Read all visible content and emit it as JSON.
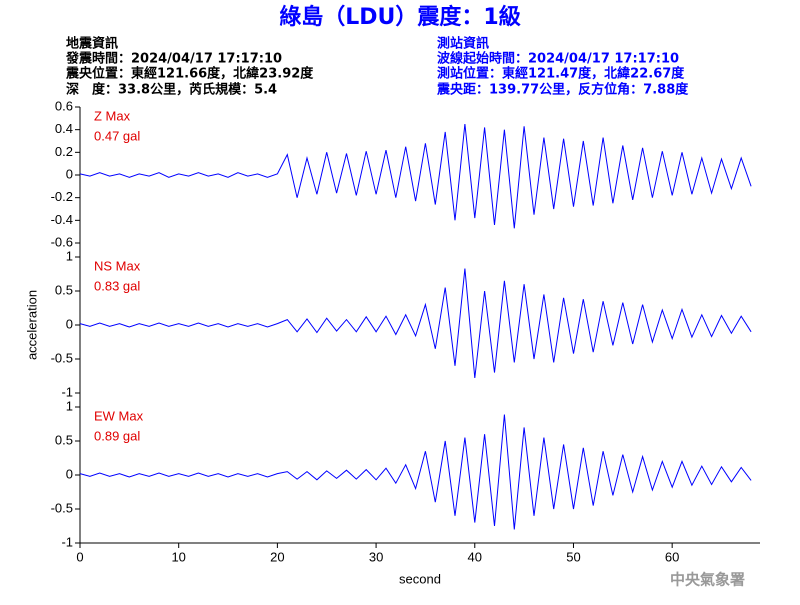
{
  "header": {
    "title": "綠島（LDU）震度：1級",
    "left": [
      "地震資訊",
      "發震時間：2024/04/17 17:17:10",
      "震央位置：東經121.66度，北緯23.92度",
      "深　度：33.8公里，芮氏規模：5.4"
    ],
    "right": [
      "測站資訊",
      "波線起始時間：2024/04/17 17:17:10",
      "測站位置：東經121.47度，北緯22.67度",
      "震央距：139.77公里，反方位角：7.88度"
    ],
    "footer": "中央氣象署"
  },
  "chart_data": [
    {
      "type": "line",
      "label": "Z Max",
      "max_label": "0.47 gal",
      "color": "#0000ff",
      "x": [
        0,
        1,
        2,
        3,
        4,
        5,
        6,
        7,
        8,
        9,
        10,
        11,
        12,
        13,
        14,
        15,
        16,
        17,
        18,
        19,
        20,
        21,
        22,
        23,
        24,
        25,
        26,
        27,
        28,
        29,
        30,
        31,
        32,
        33,
        34,
        35,
        36,
        37,
        38,
        39,
        40,
        41,
        42,
        43,
        44,
        45,
        46,
        47,
        48,
        49,
        50,
        51,
        52,
        53,
        54,
        55,
        56,
        57,
        58,
        59,
        60,
        61,
        62,
        63,
        64,
        65,
        66,
        67,
        68
      ],
      "values": [
        0.01,
        -0.01,
        0.02,
        -0.01,
        0.01,
        -0.02,
        0.01,
        -0.01,
        0.02,
        -0.02,
        0.01,
        -0.01,
        0.02,
        -0.01,
        0.01,
        -0.02,
        0.02,
        -0.01,
        0.01,
        -0.02,
        0.01,
        0.18,
        -0.2,
        0.15,
        -0.17,
        0.2,
        -0.16,
        0.19,
        -0.18,
        0.21,
        -0.17,
        0.22,
        -0.2,
        0.25,
        -0.23,
        0.28,
        -0.26,
        0.38,
        -0.4,
        0.45,
        -0.38,
        0.42,
        -0.44,
        0.4,
        -0.47,
        0.43,
        -0.35,
        0.33,
        -0.3,
        0.32,
        -0.28,
        0.3,
        -0.27,
        0.33,
        -0.25,
        0.26,
        -0.22,
        0.24,
        -0.2,
        0.21,
        -0.18,
        0.2,
        -0.17,
        0.15,
        -0.16,
        0.14,
        -0.12,
        0.15,
        -0.1
      ],
      "xlim": [
        0,
        68.9
      ],
      "ylim": [
        -0.6,
        0.6
      ],
      "yticks": [
        0.6,
        0.4,
        0.2,
        0,
        -0.2,
        -0.4,
        -0.6
      ]
    },
    {
      "type": "line",
      "label": "NS Max",
      "max_label": "0.83 gal",
      "color": "#0000ff",
      "ylabel": "acceleration",
      "x": [
        0,
        1,
        2,
        3,
        4,
        5,
        6,
        7,
        8,
        9,
        10,
        11,
        12,
        13,
        14,
        15,
        16,
        17,
        18,
        19,
        20,
        21,
        22,
        23,
        24,
        25,
        26,
        27,
        28,
        29,
        30,
        31,
        32,
        33,
        34,
        35,
        36,
        37,
        38,
        39,
        40,
        41,
        42,
        43,
        44,
        45,
        46,
        47,
        48,
        49,
        50,
        51,
        52,
        53,
        54,
        55,
        56,
        57,
        58,
        59,
        60,
        61,
        62,
        63,
        64,
        65,
        66,
        67,
        68
      ],
      "values": [
        0.02,
        -0.02,
        0.03,
        -0.02,
        0.02,
        -0.03,
        0.02,
        -0.02,
        0.03,
        -0.02,
        0.02,
        -0.02,
        0.03,
        -0.02,
        0.02,
        -0.03,
        0.02,
        -0.02,
        0.02,
        -0.03,
        0.02,
        0.08,
        -0.1,
        0.09,
        -0.11,
        0.1,
        -0.09,
        0.08,
        -0.1,
        0.12,
        -0.1,
        0.13,
        -0.14,
        0.15,
        -0.16,
        0.3,
        -0.35,
        0.55,
        -0.6,
        0.83,
        -0.78,
        0.5,
        -0.7,
        0.65,
        -0.55,
        0.6,
        -0.5,
        0.45,
        -0.55,
        0.4,
        -0.42,
        0.38,
        -0.4,
        0.35,
        -0.3,
        0.33,
        -0.28,
        0.3,
        -0.25,
        0.22,
        -0.2,
        0.23,
        -0.18,
        0.15,
        -0.17,
        0.14,
        -0.12,
        0.13,
        -0.1
      ],
      "xlim": [
        0,
        68.9
      ],
      "ylim": [
        -1,
        1
      ],
      "yticks": [
        1,
        0.5,
        0,
        -0.5,
        -1
      ]
    },
    {
      "type": "line",
      "label": "EW Max",
      "max_label": "0.89 gal",
      "color": "#0000ff",
      "xlabel": "second",
      "x": [
        0,
        1,
        2,
        3,
        4,
        5,
        6,
        7,
        8,
        9,
        10,
        11,
        12,
        13,
        14,
        15,
        16,
        17,
        18,
        19,
        20,
        21,
        22,
        23,
        24,
        25,
        26,
        27,
        28,
        29,
        30,
        31,
        32,
        33,
        34,
        35,
        36,
        37,
        38,
        39,
        40,
        41,
        42,
        43,
        44,
        45,
        46,
        47,
        48,
        49,
        50,
        51,
        52,
        53,
        54,
        55,
        56,
        57,
        58,
        59,
        60,
        61,
        62,
        63,
        64,
        65,
        66,
        67,
        68
      ],
      "values": [
        0.02,
        -0.02,
        0.03,
        -0.02,
        0.02,
        -0.03,
        0.02,
        -0.02,
        0.03,
        -0.02,
        0.02,
        -0.02,
        0.03,
        -0.02,
        0.02,
        -0.03,
        0.02,
        -0.02,
        0.02,
        -0.03,
        0.02,
        0.05,
        -0.06,
        0.05,
        -0.07,
        0.06,
        -0.05,
        0.07,
        -0.06,
        0.08,
        -0.07,
        0.1,
        -0.12,
        0.15,
        -0.2,
        0.35,
        -0.4,
        0.5,
        -0.6,
        0.55,
        -0.7,
        0.6,
        -0.75,
        0.89,
        -0.8,
        0.7,
        -0.6,
        0.55,
        -0.5,
        0.45,
        -0.5,
        0.4,
        -0.45,
        0.35,
        -0.3,
        0.3,
        -0.25,
        0.27,
        -0.22,
        0.2,
        -0.18,
        0.2,
        -0.15,
        0.13,
        -0.14,
        0.12,
        -0.1,
        0.11,
        -0.08
      ],
      "xlim": [
        0,
        68.9
      ],
      "ylim": [
        -1,
        1
      ],
      "yticks": [
        1,
        0.5,
        0,
        -0.5,
        -1
      ],
      "xticks": [
        0,
        10,
        20,
        30,
        40,
        50,
        60
      ]
    }
  ]
}
